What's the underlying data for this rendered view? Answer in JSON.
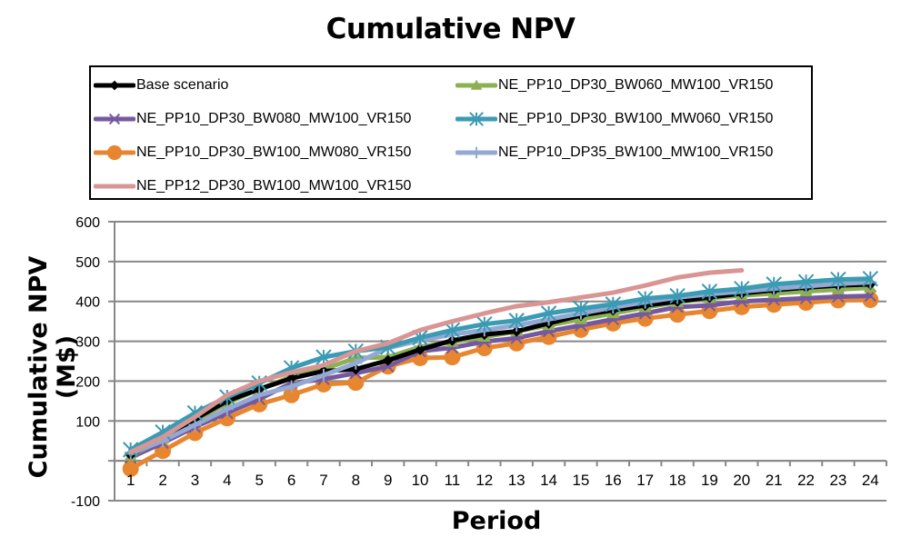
{
  "chart_data": {
    "type": "line",
    "title": "Cumulative NPV",
    "xlabel": "Period",
    "ylabel": "Cumulative NPV (M$)",
    "x": [
      1,
      2,
      3,
      4,
      5,
      6,
      7,
      8,
      9,
      10,
      11,
      12,
      13,
      14,
      15,
      16,
      17,
      18,
      19,
      20,
      21,
      22,
      23,
      24
    ],
    "x_tick_labels": [
      "1",
      "2",
      "3",
      "4",
      "5",
      "6",
      "7",
      "8",
      "9",
      "10",
      "11",
      "12",
      "13",
      "14",
      "15",
      "16",
      "17",
      "18",
      "19",
      "20",
      "21",
      "22",
      "23",
      "24"
    ],
    "ylim": [
      -100,
      600
    ],
    "y_ticks": [
      -100,
      0,
      100,
      200,
      300,
      400,
      500,
      600
    ],
    "y_tick_labels": [
      "-100",
      "",
      "100",
      "200",
      "300",
      "400",
      "500",
      "600"
    ],
    "grid": "horizontal",
    "legend_position": "top",
    "series": [
      {
        "name": "Base scenario",
        "color": "#000000",
        "marker": "diamond",
        "values": [
          15,
          55,
          105,
          150,
          180,
          207,
          225,
          230,
          252,
          279,
          302,
          317,
          325,
          345,
          365,
          378,
          390,
          400,
          410,
          420,
          428,
          435,
          440,
          443
        ]
      },
      {
        "name": "NE_PP10_DP30_BW060_MW100_VR150",
        "color": "#8db053",
        "marker": "triangle",
        "values": [
          12,
          55,
          100,
          145,
          180,
          211,
          230,
          258,
          260,
          286,
          298,
          311,
          325,
          340,
          355,
          370,
          385,
          398,
          408,
          415,
          420,
          425,
          430,
          434
        ]
      },
      {
        "name": "NE_PP10_DP30_BW080_MW100_VR150",
        "color": "#7559a0",
        "marker": "x",
        "values": [
          8,
          45,
          85,
          120,
          155,
          195,
          205,
          220,
          237,
          275,
          284,
          299,
          308,
          325,
          340,
          355,
          370,
          386,
          390,
          400,
          404,
          408,
          412,
          414
        ]
      },
      {
        "name": "NE_PP10_DP30_BW100_MW060_VR150",
        "color": "#3a9bb3",
        "marker": "asterisk",
        "values": [
          28,
          72,
          120,
          160,
          195,
          233,
          260,
          275,
          285,
          309,
          328,
          343,
          352,
          370,
          382,
          393,
          407,
          414,
          425,
          432,
          443,
          449,
          455,
          457
        ]
      },
      {
        "name": "NE_PP10_DP30_BW100_MW080_VR150",
        "color": "#e7862f",
        "marker": "circle",
        "values": [
          -20,
          25,
          70,
          107,
          142,
          165,
          192,
          196,
          237,
          258,
          260,
          283,
          295,
          311,
          329,
          345,
          357,
          367,
          376,
          386,
          392,
          397,
          403,
          404
        ]
      },
      {
        "name": "NE_PP10_DP35_BW100_MW100_VR150",
        "color": "#93a9d4",
        "marker": "plus",
        "values": [
          18,
          50,
          90,
          130,
          165,
          186,
          215,
          245,
          283,
          302,
          317,
          328,
          340,
          355,
          370,
          385,
          398,
          410,
          418,
          425,
          432,
          438,
          444,
          448
        ]
      },
      {
        "name": "NE_PP12_DP30_BW100_MW100_VR150",
        "color": "#d99594",
        "marker": "none",
        "values": [
          22,
          60,
          110,
          165,
          200,
          222,
          240,
          275,
          295,
          328,
          350,
          370,
          388,
          398,
          410,
          422,
          440,
          460,
          472,
          478,
          null,
          null,
          null,
          null
        ]
      }
    ]
  }
}
